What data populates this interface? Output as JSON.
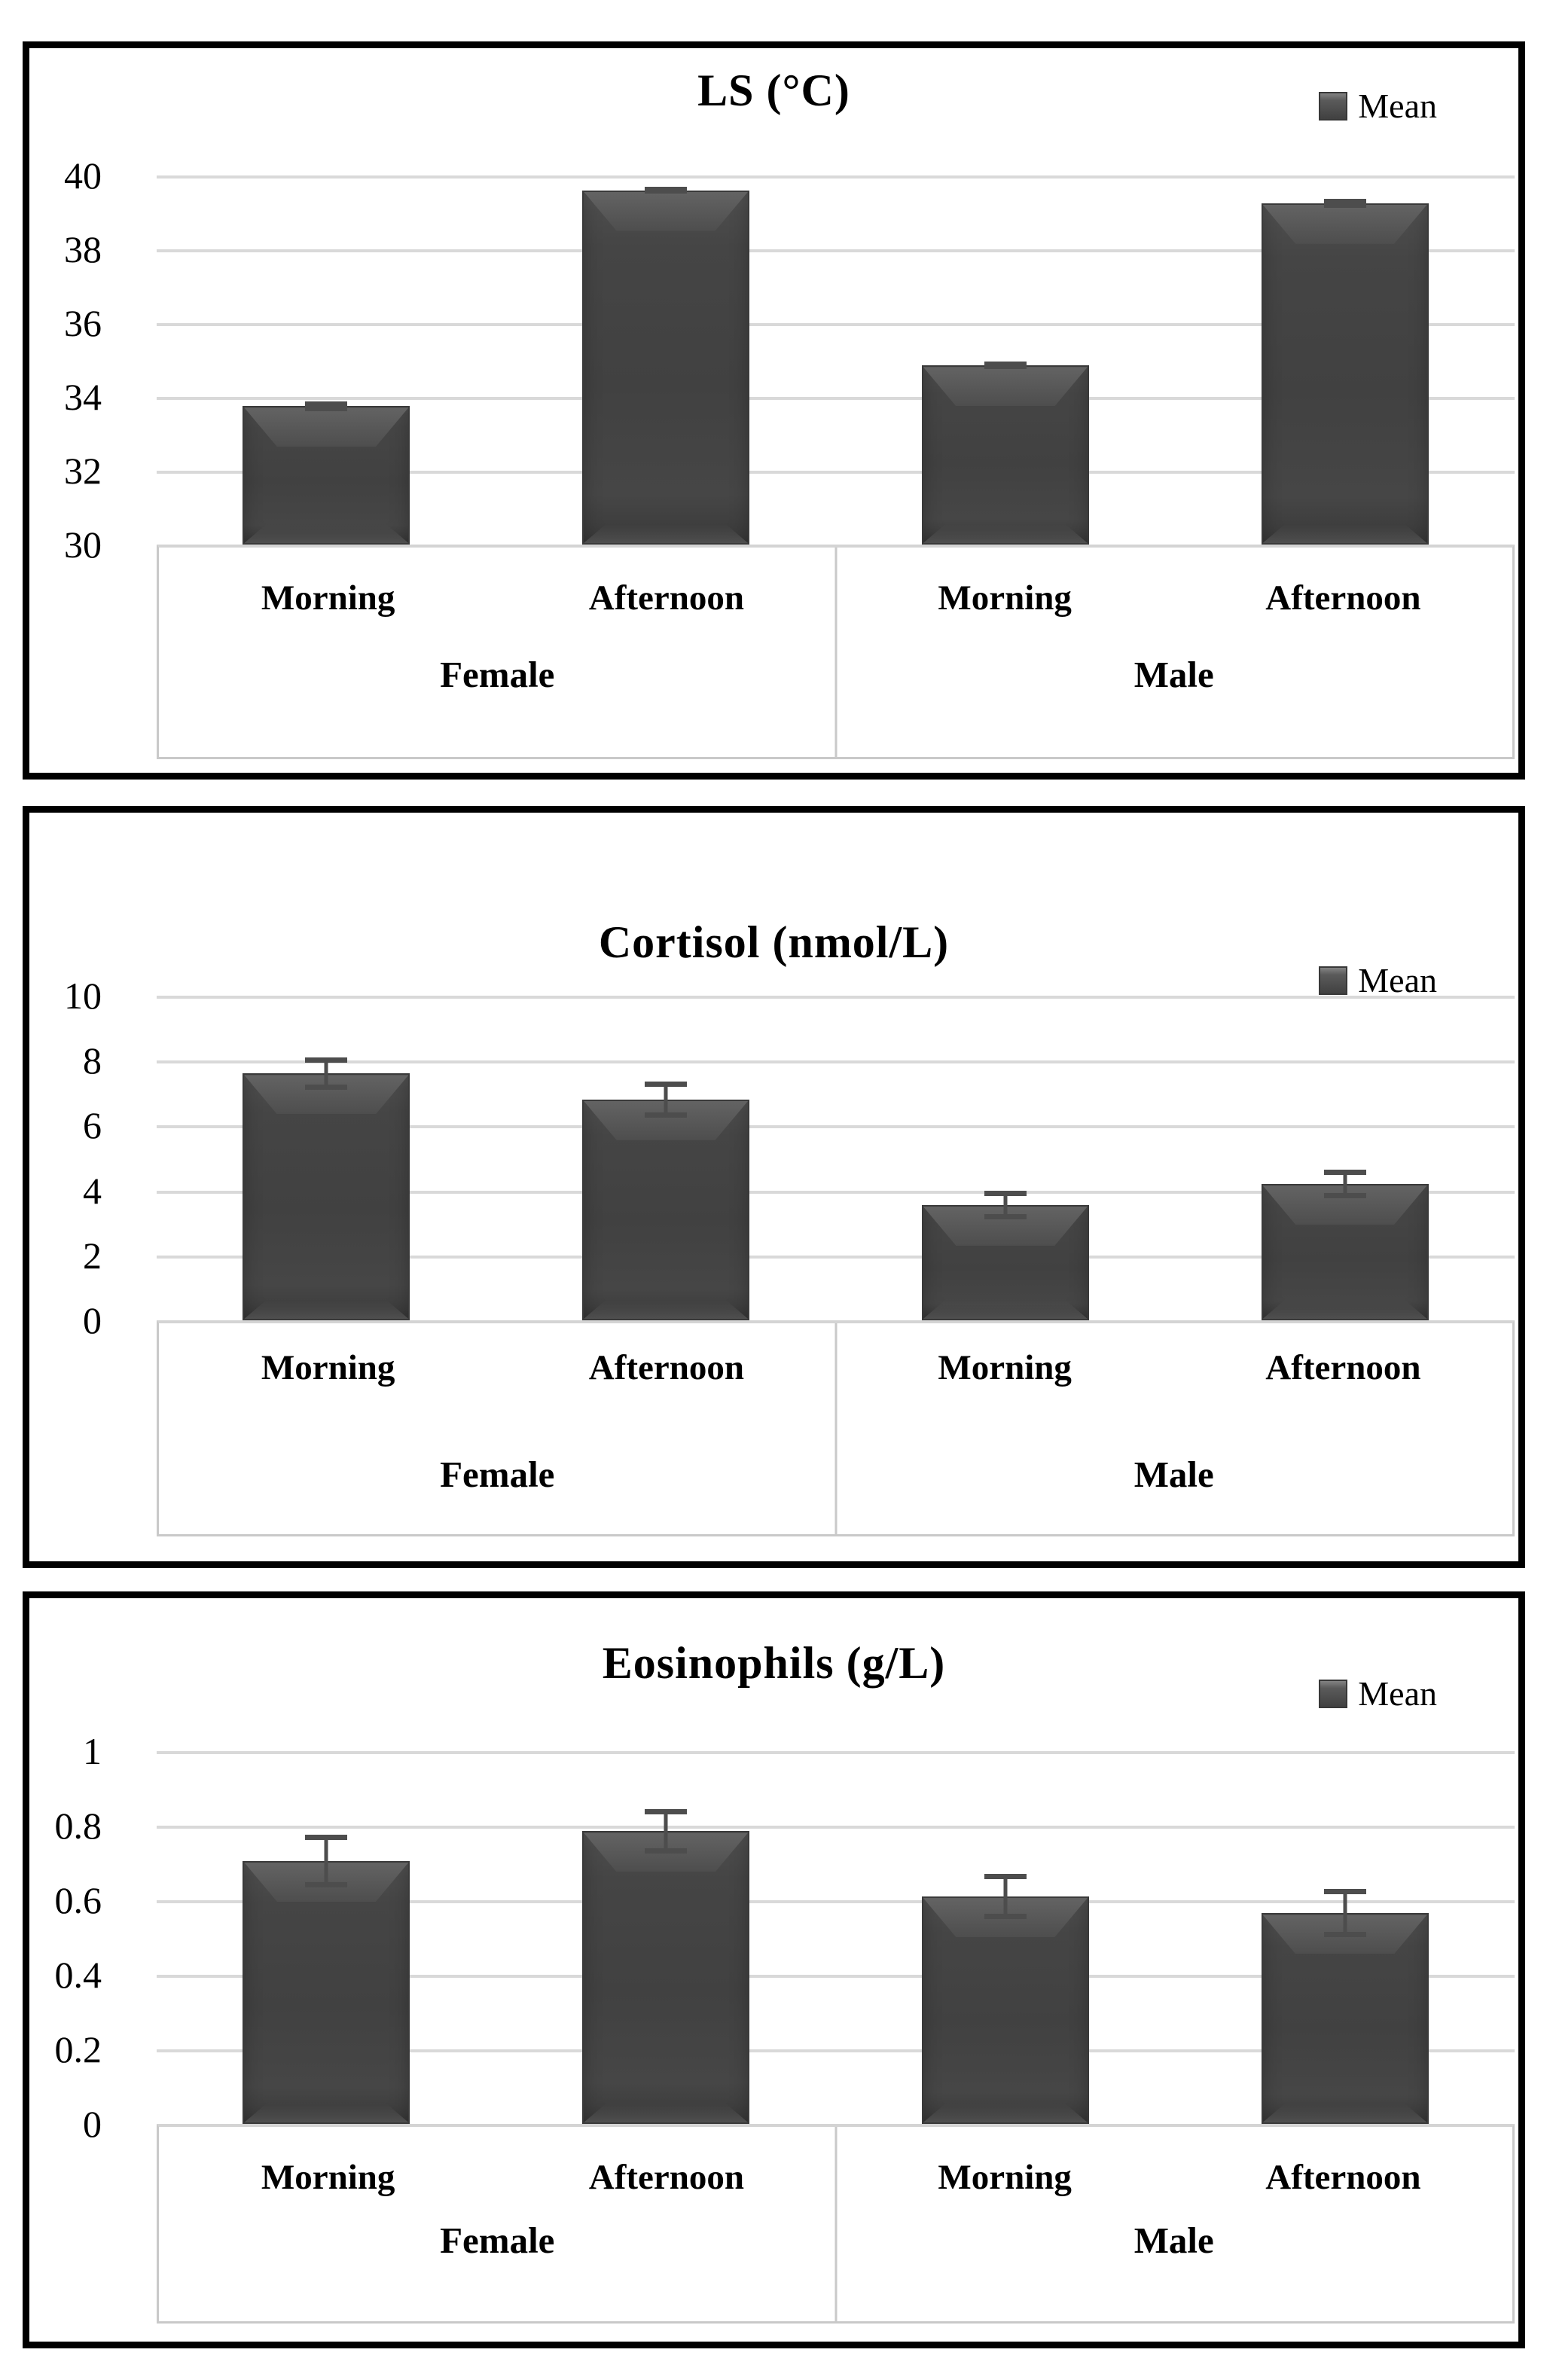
{
  "page_background": "#ffffff",
  "colors": {
    "bar_fill": "#454545",
    "gridline": "#d9d9d9",
    "category_box_border": "#c9c9c9",
    "error_bar": "#4d4d4d",
    "text": "#000000",
    "panel_border": "#000000"
  },
  "chart_data": [
    {
      "type": "bar",
      "title": "LS (°C)",
      "legend": "Mean",
      "legend_position": "top-right",
      "grid": true,
      "ylim": [
        30,
        40
      ],
      "y_ticks": [
        "40",
        "38",
        "36",
        "34",
        "32",
        "30"
      ],
      "groups": [
        "Female",
        "Male"
      ],
      "categories": [
        "Morning",
        "Afternoon",
        "Morning",
        "Afternoon"
      ],
      "series": [
        {
          "name": "Mean",
          "values": [
            33.75,
            39.6,
            34.85,
            39.25
          ],
          "errors": [
            0.13,
            0.1,
            0.1,
            0.12
          ]
        }
      ]
    },
    {
      "type": "bar",
      "title": "Cortisol (nmol/L)",
      "legend": "Mean",
      "legend_position": "top-right",
      "grid": true,
      "ylim": [
        0,
        10
      ],
      "y_ticks": [
        "10",
        "8",
        "6",
        "4",
        "2",
        "0"
      ],
      "groups": [
        "Female",
        "Male"
      ],
      "categories": [
        "Morning",
        "Afternoon",
        "Morning",
        "Afternoon"
      ],
      "series": [
        {
          "name": "Mean",
          "values": [
            7.6,
            6.8,
            3.55,
            4.2
          ],
          "errors": [
            0.5,
            0.55,
            0.45,
            0.45
          ]
        }
      ]
    },
    {
      "type": "bar",
      "title": "Eosinophils (g/L)",
      "legend": "Mean",
      "legend_position": "top-right",
      "grid": true,
      "ylim": [
        0,
        1
      ],
      "y_ticks": [
        "1",
        "0.8",
        "0.6",
        "0.4",
        "0.2",
        "0"
      ],
      "groups": [
        "Female",
        "Male"
      ],
      "categories": [
        "Morning",
        "Afternoon",
        "Morning",
        "Afternoon"
      ],
      "series": [
        {
          "name": "Mean",
          "values": [
            0.705,
            0.785,
            0.61,
            0.565
          ],
          "errors": [
            0.07,
            0.06,
            0.06,
            0.065
          ]
        }
      ]
    }
  ]
}
